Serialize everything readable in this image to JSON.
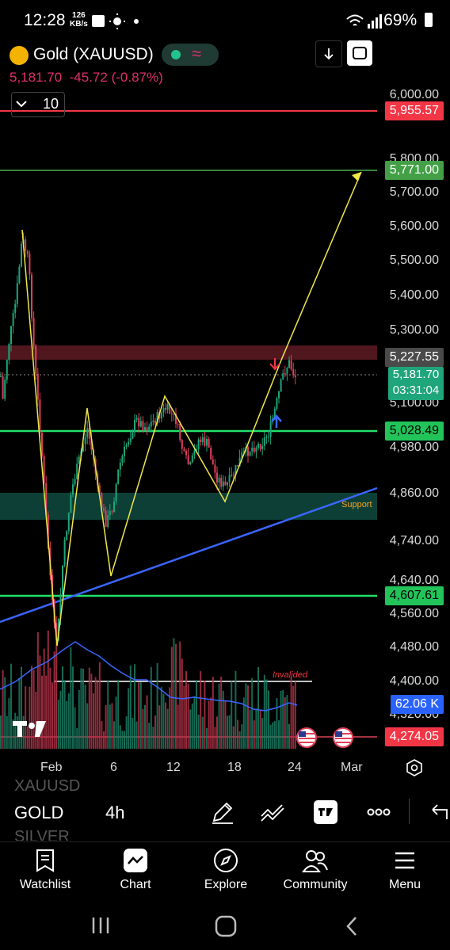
{
  "status_bar": {
    "time": "12:28",
    "net_speed_value": "126",
    "net_speed_unit": "KB/s",
    "battery": "69%"
  },
  "header": {
    "symbol_title": "Gold (XAUUSD)",
    "price": "5,181.70",
    "change": "-45.72 (-0.87%)",
    "interval_value": "10"
  },
  "price_axis": {
    "labels": [
      "6,000.00",
      "5,800.00",
      "5,700.00",
      "5,600.00",
      "5,500.00",
      "5,400.00",
      "5,300.00",
      "5,100.00",
      "4,980.00",
      "4,860.00",
      "4,740.00",
      "4,640.00",
      "4,560.00",
      "4,480.00",
      "4,400.00",
      "4,320.00"
    ],
    "tags": {
      "resistance_top": "5,955.57",
      "target": "5,771.00",
      "current_upper": "5,227.55",
      "current_price": "5,181.70",
      "countdown": "03:31:04",
      "level_mid": "5,028.49",
      "level_low": "4,607.61",
      "volume": "62.06 K",
      "level_bottom": "4,274.05"
    }
  },
  "time_axis": {
    "labels": [
      "Feb",
      "6",
      "12",
      "18",
      "24",
      "Mar"
    ]
  },
  "annotations": {
    "support_label": "Support",
    "invalided_label": "Invalided"
  },
  "toolbar": {
    "symbol_prev": "XAUUSD",
    "symbol_current": "GOLD",
    "symbol_next": "SILVER",
    "interval": "4h"
  },
  "bottom_nav": {
    "items": [
      {
        "label": "Watchlist",
        "icon": "watchlist-icon"
      },
      {
        "label": "Chart",
        "icon": "chart-icon"
      },
      {
        "label": "Explore",
        "icon": "compass-icon"
      },
      {
        "label": "Community",
        "icon": "community-icon"
      },
      {
        "label": "Menu",
        "icon": "menu-icon"
      }
    ]
  },
  "colors": {
    "background": "#000000",
    "up": "#1fa57a",
    "down": "#e0405a",
    "red_line": "#f23645",
    "green_line": "#22e06a",
    "pattern_line": "#f0e64a",
    "trend_line": "#3a66ff"
  }
}
